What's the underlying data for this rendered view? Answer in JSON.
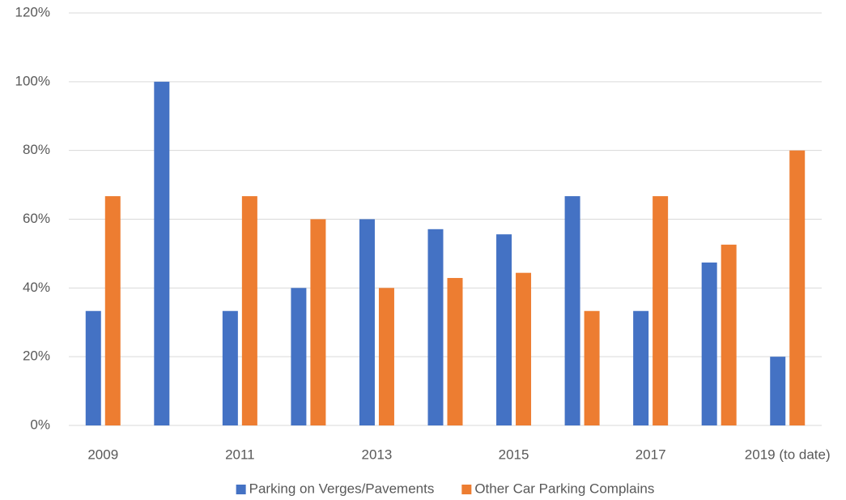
{
  "chart_data": {
    "type": "bar",
    "categories": [
      "2009",
      null,
      "2011",
      null,
      "2013",
      null,
      "2015",
      null,
      "2017",
      null,
      "2019 (to date)"
    ],
    "series": [
      {
        "name": "Parking on Verges/Pavements",
        "color": "#4472c4",
        "values": [
          33.3,
          100,
          33.3,
          40,
          60,
          57.1,
          55.6,
          66.7,
          33.3,
          47.4,
          20
        ]
      },
      {
        "name": "Other Car Parking Complains",
        "color": "#ed7d31",
        "values": [
          66.7,
          0,
          66.7,
          60,
          40,
          42.9,
          44.4,
          33.3,
          66.7,
          52.6,
          80
        ]
      }
    ],
    "ylim": [
      0,
      120
    ],
    "yticks": [
      {
        "value": 0,
        "label": "0%"
      },
      {
        "value": 20,
        "label": "20%"
      },
      {
        "value": 40,
        "label": "40%"
      },
      {
        "value": 60,
        "label": "60%"
      },
      {
        "value": 80,
        "label": "80%"
      },
      {
        "value": 100,
        "label": "100%"
      },
      {
        "value": 120,
        "label": "120%"
      }
    ],
    "grid": true,
    "legend": "bottom"
  }
}
